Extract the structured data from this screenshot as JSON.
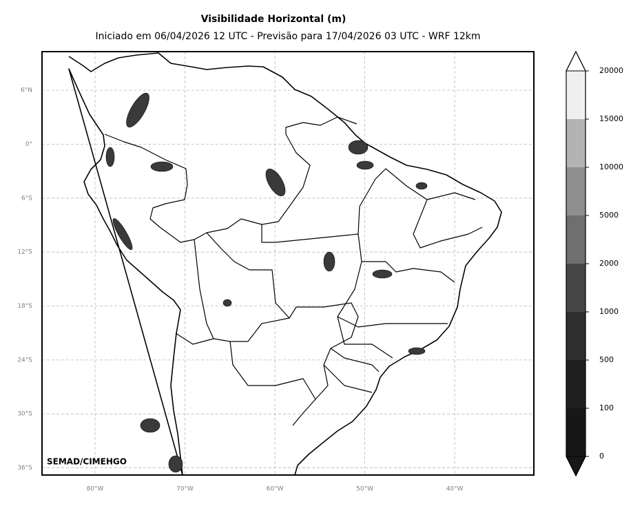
{
  "header": {
    "title": "Visibilidade Horizontal (m)",
    "subtitle": "Iniciado em 06/04/2026 12 UTC - Previsão para 17/04/2026 03 UTC - WRF 12km"
  },
  "map": {
    "lon_range": [
      -85.9,
      -31.2
    ],
    "lat_range": [
      -36.8,
      10.3
    ],
    "lat_ticks": [
      {
        "value": 6,
        "label": "6°N"
      },
      {
        "value": 0,
        "label": "0°"
      },
      {
        "value": -6,
        "label": "6°S"
      },
      {
        "value": -12,
        "label": "12°S"
      },
      {
        "value": -18,
        "label": "18°S"
      },
      {
        "value": -24,
        "label": "24°S"
      },
      {
        "value": -30,
        "label": "30°S"
      },
      {
        "value": -36,
        "label": "36°S"
      }
    ],
    "lon_ticks": [
      {
        "value": -80,
        "label": "80°W"
      },
      {
        "value": -70,
        "label": "70°W"
      },
      {
        "value": -60,
        "label": "60°W"
      },
      {
        "value": -50,
        "label": "50°W"
      },
      {
        "value": -40,
        "label": "40°W"
      }
    ],
    "credit": "SEMAD/CIMEHGO",
    "grid": true
  },
  "legend": {
    "levels": [
      0,
      100,
      500,
      1000,
      2000,
      5000,
      10000,
      15000,
      20000
    ],
    "colors": [
      "#171717",
      "#1f1f1f",
      "#2e2e2e",
      "#464646",
      "#6f6f6f",
      "#8f8f8f",
      "#b3b3b3",
      "#efefef"
    ],
    "under_color": "#171717",
    "over_color": "#ffffff"
  }
}
